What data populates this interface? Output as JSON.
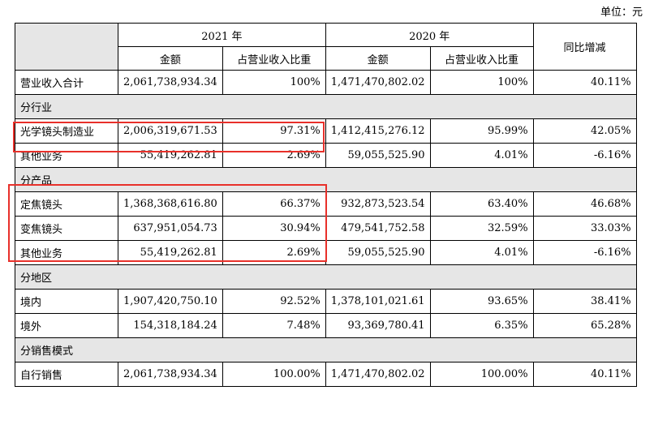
{
  "unit_label": "单位：元",
  "header": {
    "year_2021": "2021 年",
    "year_2020": "2020 年",
    "amount": "金额",
    "ratio": "占营业收入比重",
    "yoy": "同比增减"
  },
  "rows": [
    {
      "type": "data",
      "label": "营业收入合计",
      "amt21": "2,061,738,934.34",
      "pct21": "100%",
      "amt20": "1,471,470,802.02",
      "pct20": "100%",
      "yoy": "40.11%"
    },
    {
      "type": "section",
      "label": "分行业"
    },
    {
      "type": "data",
      "label": "光学镜头制造业",
      "amt21": "2,006,319,671.53",
      "pct21": "97.31%",
      "amt20": "1,412,415,276.12",
      "pct20": "95.99%",
      "yoy": "42.05%"
    },
    {
      "type": "data",
      "label": "其他业务",
      "amt21": "55,419,262.81",
      "pct21": "2.69%",
      "amt20": "59,055,525.90",
      "pct20": "4.01%",
      "yoy": "-6.16%"
    },
    {
      "type": "section",
      "label": "分产品"
    },
    {
      "type": "data",
      "label": "定焦镜头",
      "amt21": "1,368,368,616.80",
      "pct21": "66.37%",
      "amt20": "932,873,523.54",
      "pct20": "63.40%",
      "yoy": "46.68%"
    },
    {
      "type": "data",
      "label": "变焦镜头",
      "amt21": "637,951,054.73",
      "pct21": "30.94%",
      "amt20": "479,541,752.58",
      "pct20": "32.59%",
      "yoy": "33.03%"
    },
    {
      "type": "data",
      "label": "其他业务",
      "amt21": "55,419,262.81",
      "pct21": "2.69%",
      "amt20": "59,055,525.90",
      "pct20": "4.01%",
      "yoy": "-6.16%"
    },
    {
      "type": "section",
      "label": "分地区"
    },
    {
      "type": "data",
      "label": "境内",
      "amt21": "1,907,420,750.10",
      "pct21": "92.52%",
      "amt20": "1,378,101,021.61",
      "pct20": "93.65%",
      "yoy": "38.41%"
    },
    {
      "type": "data",
      "label": "境外",
      "amt21": "154,318,184.24",
      "pct21": "7.48%",
      "amt20": "93,369,780.41",
      "pct20": "6.35%",
      "yoy": "65.28%"
    },
    {
      "type": "section",
      "label": "分销售模式"
    },
    {
      "type": "data",
      "label": "自行销售",
      "amt21": "2,061,738,934.34",
      "pct21": "100.00%",
      "amt20": "1,471,470,802.02",
      "pct20": "100.00%",
      "yoy": "40.11%"
    }
  ],
  "highlight_color": "#e8302a"
}
